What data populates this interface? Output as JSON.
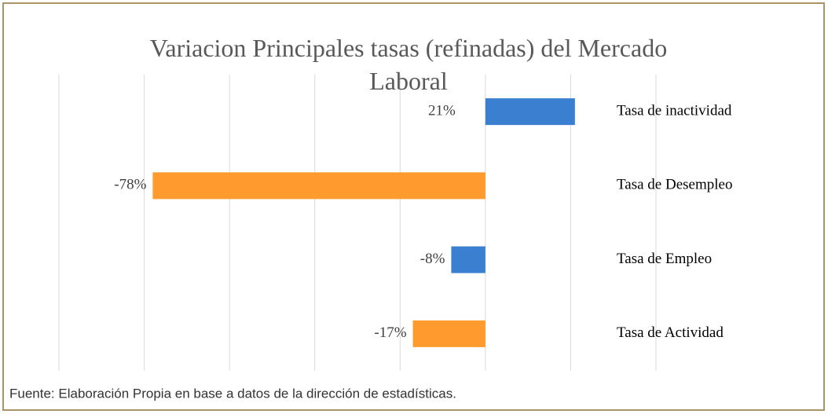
{
  "chart_data": {
    "type": "barh",
    "title": "Variacion Principales tasas (refinadas)  del Mercado Laboral",
    "categories": [
      "Tasa de inactividad",
      "Tasa de Desempleo",
      "Tasa de Empleo",
      "Tasa de Actividad"
    ],
    "values": [
      21,
      -78,
      -8,
      -17
    ],
    "value_labels": [
      "21%",
      "-78%",
      "-8%",
      "-17%"
    ],
    "colors": [
      "#3a7fd0",
      "#fe9a2e",
      "#3a7fd0",
      "#fe9a2e"
    ],
    "xlim": [
      -100,
      40
    ],
    "xticks": [
      -100,
      -80,
      -60,
      -40,
      -20,
      0,
      20,
      40
    ],
    "grid": true,
    "source": "Fuente: Elaboración Propia en base a datos de la dirección de estadísticas."
  }
}
